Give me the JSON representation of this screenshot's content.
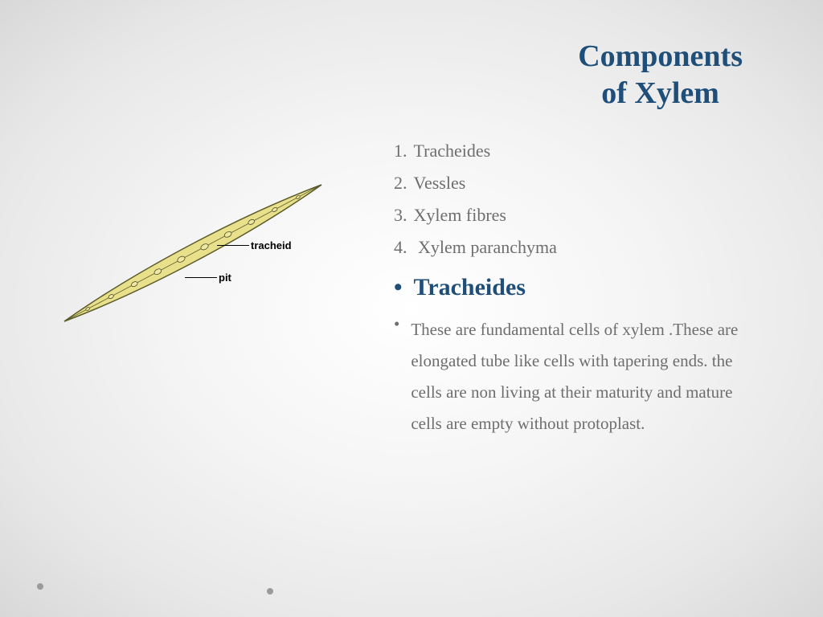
{
  "title": {
    "line1": "Components",
    "line2": "of Xylem",
    "color": "#1f4e79",
    "fontsize": 38
  },
  "list": {
    "color": "#6e6e6e",
    "fontsize": 22,
    "items": [
      {
        "num": "1.",
        "text": "Tracheides"
      },
      {
        "num": "2.",
        "text": "Vessles"
      },
      {
        "num": "3.",
        "text": "Xylem fibres"
      },
      {
        "num": "4.",
        "text": " Xylem paranchyma"
      }
    ]
  },
  "subheading": {
    "bullet": "•",
    "text": "Tracheides",
    "color": "#1f4e79",
    "fontsize": 30
  },
  "description": {
    "bullet": "•",
    "text": "These are fundamental cells of xylem .These are elongated tube like cells with tapering ends. the cells are non living at their maturity and mature cells are empty without protoplast.",
    "color": "#6e6e6e",
    "fontsize": 21
  },
  "diagram": {
    "tracheid_fill": "#e8e08a",
    "tracheid_stroke": "#5a5a2a",
    "pit_fill": "#f0e8a0",
    "pit_stroke": "#4a4a2a",
    "label1": "tracheid",
    "label2": "pit"
  },
  "decor": {
    "dot_color": "#9a9a9a"
  }
}
